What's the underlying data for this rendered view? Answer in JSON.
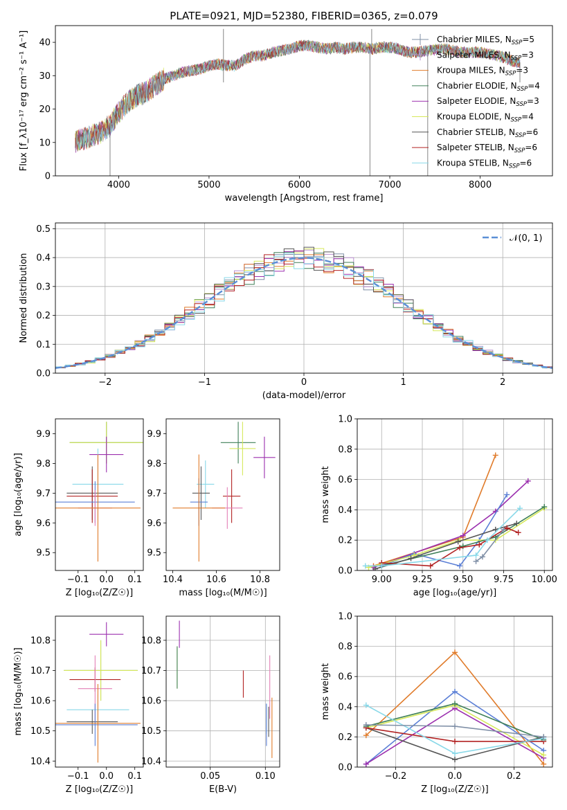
{
  "figure_title": "PLATE=0921, MJD=52380, FIBERID=0365, z=0.079",
  "colors": {
    "Chabrier MILES": "#7f8fa6",
    "Salpeter MILES": "#b98fd0",
    "Kroupa MILES": "#e07b2a",
    "Chabrier ELODIE": "#3e7f57",
    "Salpeter ELODIE": "#9b2fae",
    "Kroupa ELODIE": "#d6e85a",
    "Chabrier STELIB": "#555555",
    "Salpeter STELIB": "#b22222",
    "Kroupa STELIB": "#88d8e8",
    "Blue model": "#5b7fd6",
    "Pink model": "#e37fb6",
    "Olive model": "#7a8a1a",
    "Normal curve": "#5b8fd6"
  },
  "chart_data": [
    {
      "id": "spectrum",
      "type": "line",
      "xlabel": "wavelength [Angstrom, rest frame]",
      "ylabel": "Flux [f_λ10⁻¹⁷ erg cm⁻² s⁻¹ A⁻¹]",
      "xlim": [
        3300,
        8800
      ],
      "ylim": [
        0,
        45
      ],
      "xticks": [
        4000,
        5000,
        6000,
        7000,
        8000
      ],
      "yticks": [
        0,
        10,
        20,
        30,
        40
      ],
      "grid": false,
      "legend_loc": "right",
      "legend": [
        {
          "label": "Chabrier MILES, N",
          "sub": "SSP",
          "n": "=5",
          "color": "#7f8fa6",
          "style": "errbar"
        },
        {
          "label": "Salpeter MILES, N",
          "sub": "SSP",
          "n": "=3",
          "color": "#b98fd0",
          "style": "errbar"
        },
        {
          "label": "Kroupa MILES, N",
          "sub": "SSP",
          "n": "=3",
          "color": "#e07b2a",
          "style": "line"
        },
        {
          "label": "Chabrier ELODIE, N",
          "sub": "SSP",
          "n": "=4",
          "color": "#3e7f57",
          "style": "line"
        },
        {
          "label": "Salpeter ELODIE, N",
          "sub": "SSP",
          "n": "=3",
          "color": "#9b2fae",
          "style": "line"
        },
        {
          "label": "Kroupa ELODIE, N",
          "sub": "SSP",
          "n": "=4",
          "color": "#d6e85a",
          "style": "line"
        },
        {
          "label": "Chabrier STELIB, N",
          "sub": "SSP",
          "n": "=6",
          "color": "#555555",
          "style": "line"
        },
        {
          "label": "Salpeter STELIB, N",
          "sub": "SSP",
          "n": "=6",
          "color": "#b22222",
          "style": "line"
        },
        {
          "label": "Kroupa STELIB, N",
          "sub": "SSP",
          "n": "=6",
          "color": "#88d8e8",
          "style": "line"
        }
      ],
      "spectrum_anchor_points": [
        [
          3520,
          10
        ],
        [
          3600,
          11
        ],
        [
          3700,
          12
        ],
        [
          3800,
          13
        ],
        [
          3900,
          15
        ],
        [
          4000,
          19
        ],
        [
          4100,
          22
        ],
        [
          4200,
          24
        ],
        [
          4300,
          25
        ],
        [
          4400,
          27
        ],
        [
          4500,
          29
        ],
        [
          4600,
          30
        ],
        [
          4700,
          31
        ],
        [
          4800,
          31.5
        ],
        [
          4900,
          32
        ],
        [
          5000,
          33
        ],
        [
          5100,
          33.5
        ],
        [
          5200,
          33
        ],
        [
          5300,
          33
        ],
        [
          5400,
          35
        ],
        [
          5500,
          36
        ],
        [
          5600,
          36
        ],
        [
          5700,
          37
        ],
        [
          5800,
          37.5
        ],
        [
          5900,
          38
        ],
        [
          6000,
          39
        ],
        [
          6100,
          39
        ],
        [
          6200,
          38.5
        ],
        [
          6300,
          38
        ],
        [
          6400,
          38.5
        ],
        [
          6500,
          38
        ],
        [
          6600,
          38.5
        ],
        [
          6700,
          38.5
        ],
        [
          6800,
          38
        ],
        [
          6900,
          38.5
        ],
        [
          7000,
          38.5
        ],
        [
          7100,
          38
        ],
        [
          7200,
          37
        ],
        [
          7300,
          37
        ],
        [
          7400,
          37.5
        ],
        [
          7600,
          38
        ],
        [
          7800,
          37
        ],
        [
          8000,
          37
        ],
        [
          8200,
          36
        ],
        [
          8400,
          34
        ]
      ],
      "spikes": [
        [
          3905,
          0
        ],
        [
          5160,
          44
        ],
        [
          5160,
          28
        ],
        [
          6780,
          0
        ],
        [
          6800,
          44
        ],
        [
          7420,
          0
        ],
        [
          8440,
          28
        ]
      ]
    },
    {
      "id": "residuals",
      "type": "step",
      "xlabel": "(data-model)/error",
      "ylabel": "Normed distribution",
      "xlim": [
        -2.5,
        2.5
      ],
      "ylim": [
        0,
        0.52
      ],
      "xticks": [
        -2,
        -1,
        0,
        1,
        2
      ],
      "yticks": [
        0.0,
        0.1,
        0.2,
        0.3,
        0.4,
        0.5
      ],
      "grid": true,
      "legend_loc": "upper right",
      "normal_label": "𝒩(0, 1)",
      "bins_width": 0.1
    },
    {
      "id": "age_vs_Z",
      "type": "errorbar",
      "xlabel": "Z [log₁₀(Z/Z☉)]",
      "ylabel": "age  [log₁₀(age/yr)]",
      "xlim": [
        -0.18,
        0.13
      ],
      "ylim": [
        9.44,
        9.95
      ],
      "xticks": [
        -0.1,
        0.0,
        0.1
      ],
      "yticks": [
        9.5,
        9.6,
        9.7,
        9.8,
        9.9
      ],
      "grid": false,
      "points": [
        {
          "x": 0.0,
          "y": 9.87,
          "xerr": 0.13,
          "yerr": 0.07,
          "color": "#3e7f57"
        },
        {
          "x": 0.0,
          "y": 9.87,
          "xerr": 0.13,
          "yerr": 0.07,
          "color": "#d6e85a"
        },
        {
          "x": 0.0,
          "y": 9.83,
          "xerr": 0.06,
          "yerr": 0.06,
          "color": "#9b2fae"
        },
        {
          "x": -0.03,
          "y": 9.73,
          "xerr": 0.09,
          "yerr": 0.12,
          "color": "#88d8e8"
        },
        {
          "x": -0.05,
          "y": 9.7,
          "xerr": 0.09,
          "yerr": 0.09,
          "color": "#555555"
        },
        {
          "x": -0.05,
          "y": 9.69,
          "xerr": 0.09,
          "yerr": 0.09,
          "color": "#b22222"
        },
        {
          "x": -0.04,
          "y": 9.67,
          "xerr": 0.14,
          "yerr": 0.07,
          "color": "#5b7fd6"
        },
        {
          "x": -0.04,
          "y": 9.65,
          "xerr": 0.06,
          "yerr": 0.06,
          "color": "#e37fb6"
        },
        {
          "x": -0.03,
          "y": 9.65,
          "xerr": 0.15,
          "yerr": 0.18,
          "color": "#e07b2a"
        }
      ]
    },
    {
      "id": "age_vs_mass",
      "type": "errorbar",
      "xlabel": "mass [log₁₀(M/M☉)]",
      "ylabel": "",
      "xlim": [
        10.37,
        10.89
      ],
      "ylim": [
        9.44,
        9.95
      ],
      "xticks": [
        10.4,
        10.6,
        10.8
      ],
      "yticks": [
        9.5,
        9.6,
        9.7,
        9.8,
        9.9
      ],
      "grid": false,
      "points": [
        {
          "x": 10.7,
          "y": 9.87,
          "xerr": 0.08,
          "yerr": 0.07,
          "color": "#3e7f57"
        },
        {
          "x": 10.72,
          "y": 9.85,
          "xerr": 0.06,
          "yerr": 0.09,
          "color": "#d6e85a"
        },
        {
          "x": 10.82,
          "y": 9.82,
          "xerr": 0.05,
          "yerr": 0.07,
          "color": "#9b2fae"
        },
        {
          "x": 10.55,
          "y": 9.73,
          "xerr": 0.04,
          "yerr": 0.08,
          "color": "#88d8e8"
        },
        {
          "x": 10.53,
          "y": 9.7,
          "xerr": 0.04,
          "yerr": 0.09,
          "color": "#555555"
        },
        {
          "x": 10.67,
          "y": 9.69,
          "xerr": 0.04,
          "yerr": 0.09,
          "color": "#b22222"
        },
        {
          "x": 10.52,
          "y": 9.67,
          "xerr": 0.04,
          "yerr": 0.08,
          "color": "#5b7fd6"
        },
        {
          "x": 10.65,
          "y": 9.65,
          "xerr": 0.07,
          "yerr": 0.07,
          "color": "#e37fb6"
        },
        {
          "x": 10.52,
          "y": 9.65,
          "xerr": 0.12,
          "yerr": 0.18,
          "color": "#e07b2a"
        }
      ]
    },
    {
      "id": "weight_vs_age",
      "type": "line",
      "xlabel": "age  [log₁₀(age/yr)]",
      "ylabel": "mass weight",
      "xlim": [
        8.85,
        10.05
      ],
      "ylim": [
        0,
        1.0
      ],
      "xticks": [
        9.0,
        9.25,
        9.5,
        9.75,
        10.0
      ],
      "yticks": [
        0.0,
        0.2,
        0.4,
        0.6,
        0.8,
        1.0
      ],
      "grid": true,
      "series": [
        {
          "color": "#e07b2a",
          "x": [
            8.95,
            9.5,
            9.7
          ],
          "y": [
            0.03,
            0.22,
            0.76
          ]
        },
        {
          "color": "#9b2fae",
          "x": [
            8.95,
            9.5,
            9.7,
            9.9
          ],
          "y": [
            0.02,
            0.23,
            0.39,
            0.59
          ]
        },
        {
          "color": "#5b7fd6",
          "x": [
            9.0,
            9.2,
            9.48,
            9.6,
            9.77
          ],
          "y": [
            0.03,
            0.11,
            0.03,
            0.2,
            0.5
          ]
        },
        {
          "color": "#d6e85a",
          "x": [
            8.92,
            9.2,
            9.48,
            9.7,
            10.0
          ],
          "y": [
            0.02,
            0.1,
            0.2,
            0.2,
            0.41
          ]
        },
        {
          "color": "#3e7f57",
          "x": [
            9.0,
            9.5,
            9.7,
            10.0
          ],
          "y": [
            0.03,
            0.16,
            0.22,
            0.42
          ]
        },
        {
          "color": "#555555",
          "x": [
            8.96,
            9.18,
            9.47,
            9.7,
            9.83
          ],
          "y": [
            0.01,
            0.08,
            0.19,
            0.27,
            0.31
          ]
        },
        {
          "color": "#b22222",
          "x": [
            9.0,
            9.3,
            9.48,
            9.6,
            9.77,
            9.84
          ],
          "y": [
            0.05,
            0.03,
            0.15,
            0.17,
            0.28,
            0.25
          ]
        },
        {
          "color": "#88d8e8",
          "x": [
            8.9,
            9.0,
            9.58,
            9.65,
            9.85
          ],
          "y": [
            0.03,
            0.03,
            0.1,
            0.2,
            0.41
          ]
        },
        {
          "color": "#7f8fa6",
          "x": [
            9.58,
            9.62,
            9.75
          ],
          "y": [
            0.06,
            0.09,
            0.27
          ]
        }
      ]
    },
    {
      "id": "mass_vs_Z",
      "type": "errorbar",
      "xlabel": "Z [log₁₀(Z/Z☉)]",
      "ylabel": "mass [log₁₀(M/M☉)]",
      "xlim": [
        -0.18,
        0.13
      ],
      "ylim": [
        10.38,
        10.88
      ],
      "xticks": [
        -0.1,
        0.0,
        0.1
      ],
      "yticks": [
        10.4,
        10.5,
        10.6,
        10.7,
        10.8
      ],
      "grid": false,
      "points": [
        {
          "x": 0.0,
          "y": 10.82,
          "xerr": 0.06,
          "yerr": 0.04,
          "color": "#9b2fae"
        },
        {
          "x": -0.02,
          "y": 10.7,
          "xerr": 0.13,
          "yerr": 0.1,
          "color": "#3e7f57"
        },
        {
          "x": -0.02,
          "y": 10.7,
          "xerr": 0.13,
          "yerr": 0.1,
          "color": "#d6e85a"
        },
        {
          "x": -0.04,
          "y": 10.67,
          "xerr": 0.09,
          "yerr": 0.04,
          "color": "#b22222"
        },
        {
          "x": -0.04,
          "y": 10.64,
          "xerr": 0.06,
          "yerr": 0.11,
          "color": "#e37fb6"
        },
        {
          "x": -0.03,
          "y": 10.57,
          "xerr": 0.11,
          "yerr": 0.05,
          "color": "#88d8e8"
        },
        {
          "x": -0.05,
          "y": 10.53,
          "xerr": 0.09,
          "yerr": 0.04,
          "color": "#555555"
        },
        {
          "x": -0.04,
          "y": 10.52,
          "xerr": 0.15,
          "yerr": 0.07,
          "color": "#5b7fd6"
        },
        {
          "x": -0.03,
          "y": 10.525,
          "xerr": 0.15,
          "yerr": 0.13,
          "color": "#e07b2a"
        }
      ]
    },
    {
      "id": "mass_vs_ebv",
      "type": "errorbar",
      "xlabel": "E(B-V)",
      "ylabel": "",
      "xlim": [
        0.01,
        0.113
      ],
      "ylim": [
        10.38,
        10.88
      ],
      "xticks": [
        0.05,
        0.1
      ],
      "yticks": [
        10.4,
        10.5,
        10.6,
        10.7,
        10.8
      ],
      "grid": true,
      "points": [
        {
          "x": 0.022,
          "y": 10.82,
          "xerr": 0,
          "yerr": 0.045,
          "color": "#9b2fae"
        },
        {
          "x": 0.02,
          "y": 10.71,
          "xerr": 0,
          "yerr": 0.07,
          "color": "#d6e85a"
        },
        {
          "x": 0.02,
          "y": 10.71,
          "xerr": 0,
          "yerr": 0.07,
          "color": "#3e7f57"
        },
        {
          "x": 0.08,
          "y": 10.655,
          "xerr": 0,
          "yerr": 0.045,
          "color": "#b22222"
        },
        {
          "x": 0.104,
          "y": 10.645,
          "xerr": 0,
          "yerr": 0.105,
          "color": "#e37fb6"
        },
        {
          "x": 0.101,
          "y": 10.54,
          "xerr": 0,
          "yerr": 0.05,
          "color": "#88d8e8"
        },
        {
          "x": 0.103,
          "y": 10.53,
          "xerr": 0,
          "yerr": 0.05,
          "color": "#555555"
        },
        {
          "x": 0.101,
          "y": 10.52,
          "xerr": 0,
          "yerr": 0.07,
          "color": "#5b7fd6"
        },
        {
          "x": 0.106,
          "y": 10.51,
          "xerr": 0,
          "yerr": 0.1,
          "color": "#e07b2a"
        }
      ]
    },
    {
      "id": "weight_vs_Z",
      "type": "line",
      "xlabel": "Z [log₁₀(Z/Z☉)]",
      "ylabel": "mass weight",
      "xlim": [
        -0.33,
        0.33
      ],
      "ylim": [
        0,
        1.0
      ],
      "xticks": [
        -0.2,
        0.0,
        0.2
      ],
      "yticks": [
        0.0,
        0.2,
        0.4,
        0.6,
        0.8,
        1.0
      ],
      "grid": true,
      "series": [
        {
          "color": "#e07b2a",
          "x": [
            -0.3,
            0.0,
            0.3
          ],
          "y": [
            0.21,
            0.76,
            0.02
          ]
        },
        {
          "color": "#5b7fd6",
          "x": [
            -0.3,
            0.0,
            0.3
          ],
          "y": [
            0.02,
            0.5,
            0.11
          ]
        },
        {
          "color": "#9b2fae",
          "x": [
            -0.3,
            0.0,
            0.3
          ],
          "y": [
            0.02,
            0.39,
            0.06
          ]
        },
        {
          "color": "#d6e85a",
          "x": [
            -0.3,
            0.0,
            0.3
          ],
          "y": [
            0.26,
            0.41,
            0.08
          ]
        },
        {
          "color": "#3e7f57",
          "x": [
            -0.3,
            0.0,
            0.3
          ],
          "y": [
            0.27,
            0.42,
            0.18
          ]
        },
        {
          "color": "#555555",
          "x": [
            -0.3,
            0.0,
            0.3
          ],
          "y": [
            0.26,
            0.05,
            0.2
          ]
        },
        {
          "color": "#b22222",
          "x": [
            -0.3,
            0.0,
            0.3
          ],
          "y": [
            0.26,
            0.17,
            0.17
          ]
        },
        {
          "color": "#88d8e8",
          "x": [
            -0.3,
            0.0,
            0.3
          ],
          "y": [
            0.41,
            0.09,
            0.19
          ]
        },
        {
          "color": "#7f8fa6",
          "x": [
            -0.3,
            0.0,
            0.3
          ],
          "y": [
            0.28,
            0.27,
            0.2
          ]
        }
      ]
    }
  ]
}
